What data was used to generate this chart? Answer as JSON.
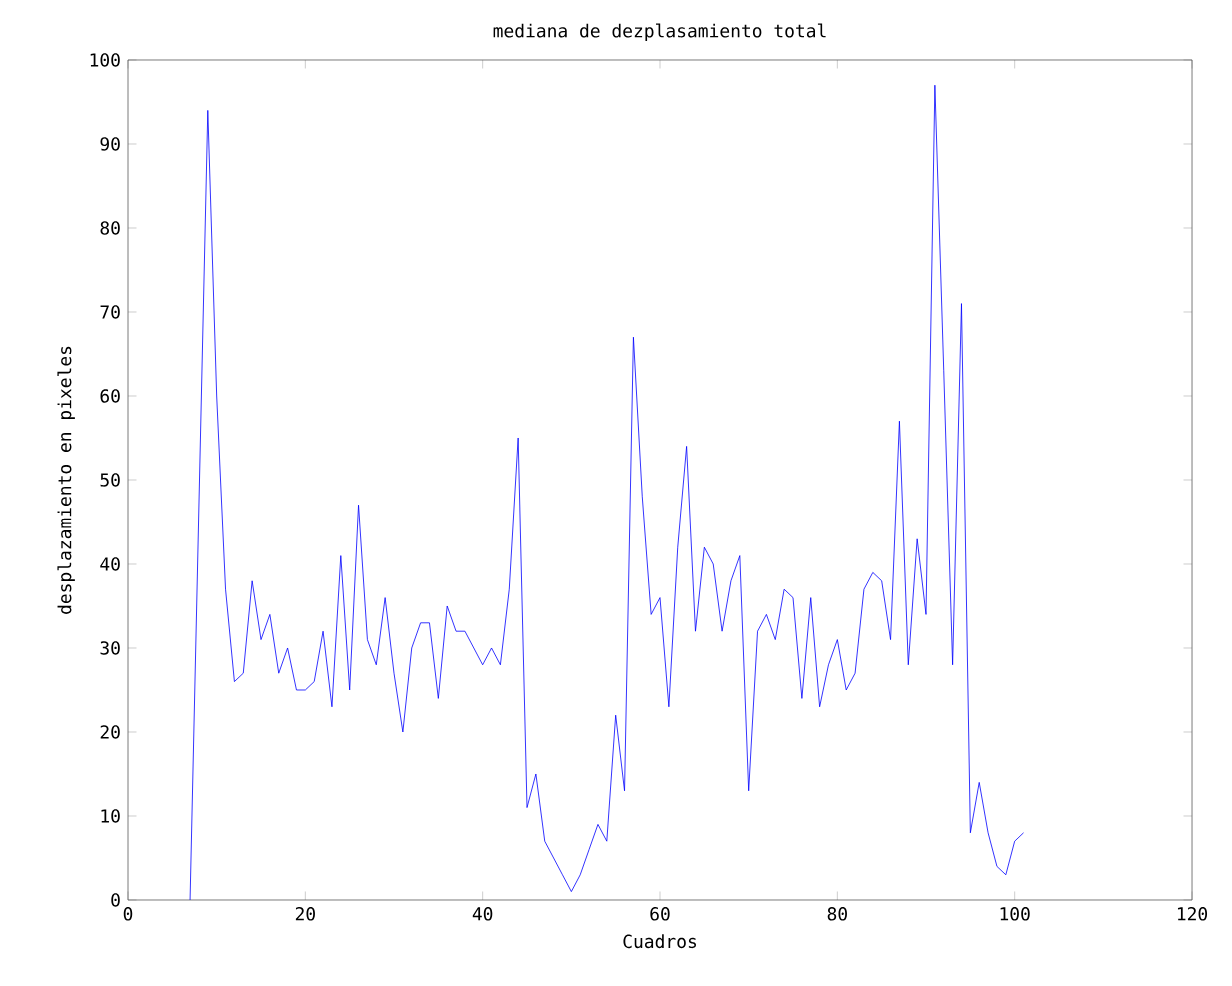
{
  "chart_data": {
    "type": "line",
    "title": "mediana de dezplasamiento total",
    "xlabel": "Cuadros",
    "ylabel": "desplazamiento en pixeles",
    "xlim": [
      0,
      120
    ],
    "ylim": [
      0,
      100
    ],
    "xticks": [
      0,
      20,
      40,
      60,
      80,
      100,
      120
    ],
    "yticks": [
      0,
      10,
      20,
      30,
      40,
      50,
      60,
      70,
      80,
      90,
      100
    ],
    "x": [
      7,
      8,
      9,
      10,
      11,
      12,
      13,
      14,
      15,
      16,
      17,
      18,
      19,
      20,
      21,
      22,
      23,
      24,
      25,
      26,
      27,
      28,
      29,
      30,
      31,
      32,
      33,
      34,
      35,
      36,
      37,
      38,
      39,
      40,
      41,
      42,
      43,
      44,
      45,
      46,
      47,
      48,
      49,
      50,
      51,
      52,
      53,
      54,
      55,
      56,
      57,
      58,
      59,
      60,
      61,
      62,
      63,
      64,
      65,
      66,
      67,
      68,
      69,
      70,
      71,
      72,
      73,
      74,
      75,
      76,
      77,
      78,
      79,
      80,
      81,
      82,
      83,
      84,
      85,
      86,
      87,
      88,
      89,
      90,
      91,
      92,
      93,
      94,
      95,
      96,
      97,
      98,
      99,
      100,
      101
    ],
    "series": [
      {
        "color": "#0000ff",
        "values": [
          0,
          47,
          94,
          60,
          37,
          26,
          27,
          38,
          31,
          34,
          27,
          30,
          25,
          25,
          26,
          32,
          23,
          41,
          25,
          47,
          31,
          28,
          36,
          27,
          20,
          30,
          33,
          33,
          24,
          35,
          32,
          32,
          30,
          28,
          30,
          28,
          37,
          55,
          11,
          15,
          7,
          5,
          3,
          1,
          3,
          6,
          9,
          7,
          22,
          13,
          67,
          48,
          34,
          36,
          23,
          42,
          54,
          32,
          42,
          40,
          32,
          38,
          41,
          13,
          32,
          34,
          31,
          37,
          36,
          24,
          36,
          23,
          28,
          31,
          25,
          27,
          37,
          39,
          38,
          31,
          57,
          28,
          43,
          34,
          97,
          63,
          28,
          71,
          8,
          14,
          8,
          4,
          3,
          7,
          8
        ]
      }
    ]
  }
}
